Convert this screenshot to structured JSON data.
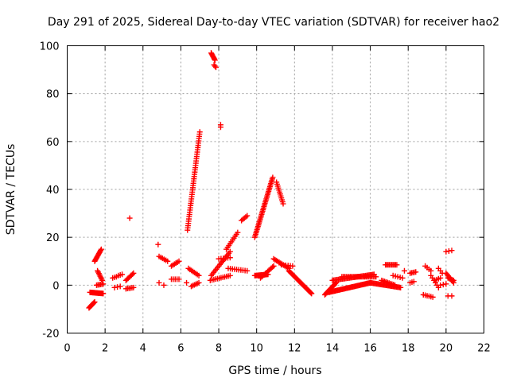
{
  "chart_data": {
    "type": "scatter",
    "title": "Day 291 of 2025, Sidereal Day-to-day VTEC variation (SDTVAR) for receiver hao2",
    "xlabel": "GPS time / hours",
    "ylabel": "SDTVAR / TECUs",
    "xlim": [
      0,
      22
    ],
    "ylim": [
      -20,
      100
    ],
    "xticks": [
      "0",
      "2",
      "4",
      "6",
      "8",
      "10",
      "12",
      "14",
      "16",
      "18",
      "20",
      "22"
    ],
    "yticks": [
      "-20",
      "0",
      "20",
      "40",
      "60",
      "80",
      "100"
    ],
    "grid": true,
    "marker": "+",
    "color": "#ff0000",
    "segments": [
      {
        "x0": 1.15,
        "x1": 1.45,
        "y0": -9.5,
        "y1": -7.0,
        "n": 10
      },
      {
        "x0": 1.2,
        "x1": 1.9,
        "y0": -3.0,
        "y1": -3.5,
        "n": 18
      },
      {
        "x0": 1.45,
        "x1": 1.8,
        "y0": 10.0,
        "y1": 15.0,
        "n": 12
      },
      {
        "x0": 1.6,
        "x1": 1.85,
        "y0": 6.0,
        "y1": 2.0,
        "n": 8
      },
      {
        "x0": 1.55,
        "x1": 1.9,
        "y0": 0.0,
        "y1": 0.5,
        "n": 6
      },
      {
        "x0": 2.4,
        "x1": 2.6,
        "y0": 3.0,
        "y1": 3.5,
        "n": 3
      },
      {
        "x0": 2.5,
        "x1": 2.8,
        "y0": -1.0,
        "y1": -0.5,
        "n": 3
      },
      {
        "x0": 2.7,
        "x1": 2.9,
        "y0": 4.0,
        "y1": 4.5,
        "n": 3
      },
      {
        "x0": 3.1,
        "x1": 3.5,
        "y0": 2.0,
        "y1": 5.0,
        "n": 8
      },
      {
        "x0": 3.1,
        "x1": 3.5,
        "y0": -1.5,
        "y1": -1.0,
        "n": 6
      },
      {
        "x0": 3.3,
        "x1": 3.3,
        "y0": 28.0,
        "y1": 28.0,
        "n": 1
      },
      {
        "x0": 4.8,
        "x1": 4.8,
        "y0": 17.0,
        "y1": 17.0,
        "n": 1
      },
      {
        "x0": 4.85,
        "x1": 5.3,
        "y0": 12.0,
        "y1": 10.0,
        "n": 6
      },
      {
        "x0": 4.85,
        "x1": 4.85,
        "y0": 1.0,
        "y1": 1.0,
        "n": 1
      },
      {
        "x0": 5.1,
        "x1": 5.1,
        "y0": 0.0,
        "y1": 0.0,
        "n": 1
      },
      {
        "x0": 5.5,
        "x1": 5.9,
        "y0": 8.0,
        "y1": 10.0,
        "n": 6
      },
      {
        "x0": 5.5,
        "x1": 5.9,
        "y0": 2.5,
        "y1": 2.5,
        "n": 5
      },
      {
        "x0": 6.3,
        "x1": 6.3,
        "y0": 1.0,
        "y1": 1.0,
        "n": 1
      },
      {
        "x0": 6.4,
        "x1": 6.95,
        "y0": 7.0,
        "y1": 4.0,
        "n": 8
      },
      {
        "x0": 6.55,
        "x1": 6.95,
        "y0": -0.5,
        "y1": 1.0,
        "n": 6
      },
      {
        "x0": 6.35,
        "x1": 7.0,
        "y0": 23.0,
        "y1": 64.0,
        "n": 45
      },
      {
        "x0": 7.6,
        "x1": 7.8,
        "y0": 97.0,
        "y1": 94.0,
        "n": 8
      },
      {
        "x0": 7.75,
        "x1": 7.85,
        "y0": 92.0,
        "y1": 91.0,
        "n": 3
      },
      {
        "x0": 8.1,
        "x1": 8.1,
        "y0": 66.0,
        "y1": 67.0,
        "n": 2
      },
      {
        "x0": 7.6,
        "x1": 8.6,
        "y0": 4.0,
        "y1": 14.0,
        "n": 16
      },
      {
        "x0": 7.55,
        "x1": 8.6,
        "y0": 2.0,
        "y1": 4.0,
        "n": 12
      },
      {
        "x0": 8.0,
        "x1": 8.6,
        "y0": 11.0,
        "y1": 11.5,
        "n": 6
      },
      {
        "x0": 8.4,
        "x1": 9.0,
        "y0": 15.0,
        "y1": 22.0,
        "n": 10
      },
      {
        "x0": 8.5,
        "x1": 9.5,
        "y0": 7.0,
        "y1": 6.0,
        "n": 10
      },
      {
        "x0": 9.2,
        "x1": 9.5,
        "y0": 27.0,
        "y1": 29.0,
        "n": 5
      },
      {
        "x0": 9.9,
        "x1": 10.85,
        "y0": 20.0,
        "y1": 45.0,
        "n": 40
      },
      {
        "x0": 9.9,
        "x1": 10.6,
        "y0": 4.0,
        "y1": 4.5,
        "n": 15
      },
      {
        "x0": 10.2,
        "x1": 10.9,
        "y0": 3.0,
        "y1": 8.0,
        "n": 12
      },
      {
        "x0": 11.05,
        "x1": 11.4,
        "y0": 43.0,
        "y1": 34.0,
        "n": 12
      },
      {
        "x0": 10.9,
        "x1": 11.7,
        "y0": 11.0,
        "y1": 7.0,
        "n": 12
      },
      {
        "x0": 11.7,
        "x1": 12.9,
        "y0": 6.0,
        "y1": -3.5,
        "n": 30
      },
      {
        "x0": 11.3,
        "x1": 11.9,
        "y0": 8.5,
        "y1": 8.0,
        "n": 6
      },
      {
        "x0": 13.6,
        "x1": 14.2,
        "y0": -4.0,
        "y1": 1.0,
        "n": 14
      },
      {
        "x0": 13.8,
        "x1": 16.0,
        "y0": -3.0,
        "y1": 1.0,
        "n": 45
      },
      {
        "x0": 14.0,
        "x1": 16.2,
        "y0": 2.0,
        "y1": 4.5,
        "n": 35
      },
      {
        "x0": 14.5,
        "x1": 16.3,
        "y0": 3.5,
        "y1": 3.5,
        "n": 25
      },
      {
        "x0": 16.0,
        "x1": 17.6,
        "y0": 1.0,
        "y1": -1.0,
        "n": 30
      },
      {
        "x0": 16.6,
        "x1": 17.3,
        "y0": 2.0,
        "y1": 0.0,
        "n": 10
      },
      {
        "x0": 16.8,
        "x1": 17.4,
        "y0": 8.5,
        "y1": 8.5,
        "n": 10
      },
      {
        "x0": 17.2,
        "x1": 17.7,
        "y0": 4.0,
        "y1": 3.0,
        "n": 5
      },
      {
        "x0": 17.8,
        "x1": 17.8,
        "y0": 6.0,
        "y1": 6.0,
        "n": 1
      },
      {
        "x0": 18.1,
        "x1": 18.4,
        "y0": 5.0,
        "y1": 5.5,
        "n": 5
      },
      {
        "x0": 18.1,
        "x1": 18.3,
        "y0": 1.0,
        "y1": 1.5,
        "n": 3
      },
      {
        "x0": 18.8,
        "x1": 19.3,
        "y0": -4.0,
        "y1": -5.0,
        "n": 6
      },
      {
        "x0": 18.9,
        "x1": 19.2,
        "y0": 8.0,
        "y1": 6.0,
        "n": 4
      },
      {
        "x0": 19.2,
        "x1": 19.6,
        "y0": 4.0,
        "y1": -1.0,
        "n": 6
      },
      {
        "x0": 19.4,
        "x1": 19.7,
        "y0": 2.0,
        "y1": 3.0,
        "n": 4
      },
      {
        "x0": 19.6,
        "x1": 19.8,
        "y0": 7.0,
        "y1": 5.0,
        "n": 3
      },
      {
        "x0": 19.7,
        "x1": 20.0,
        "y0": 0.0,
        "y1": 0.5,
        "n": 3
      },
      {
        "x0": 20.0,
        "x1": 20.3,
        "y0": 14.0,
        "y1": 14.5,
        "n": 3
      },
      {
        "x0": 20.1,
        "x1": 20.3,
        "y0": -4.5,
        "y1": -4.5,
        "n": 2
      },
      {
        "x0": 20.0,
        "x1": 20.4,
        "y0": 5.0,
        "y1": 1.0,
        "n": 8
      },
      {
        "x0": 20.1,
        "x1": 20.4,
        "y0": 3.0,
        "y1": 2.0,
        "n": 5
      }
    ]
  }
}
